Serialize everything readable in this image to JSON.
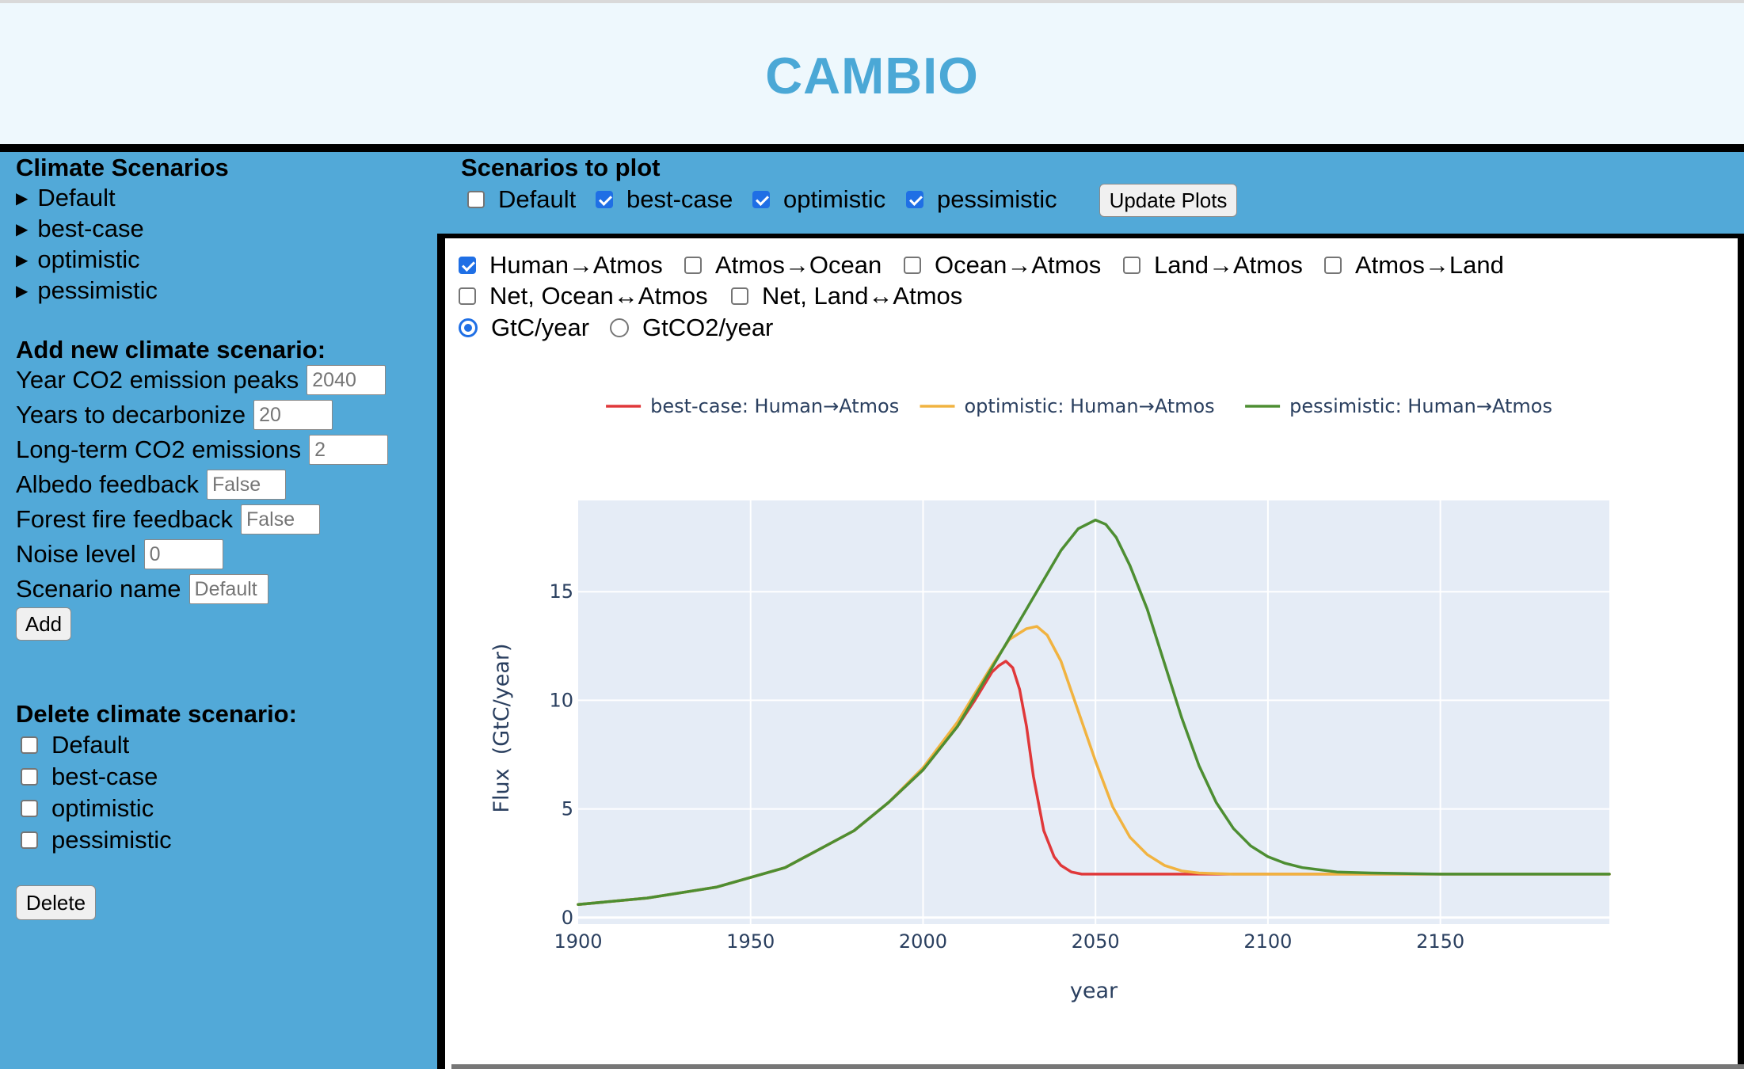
{
  "app": {
    "title": "CAMBIO"
  },
  "sidebar": {
    "scenarios_heading": "Climate Scenarios",
    "scenarios": [
      {
        "label": "Default"
      },
      {
        "label": "best-case"
      },
      {
        "label": "optimistic"
      },
      {
        "label": "pessimistic"
      }
    ],
    "add": {
      "heading": "Add new climate scenario:",
      "fields": [
        {
          "label": "Year CO2 emission peaks",
          "placeholder": "2040"
        },
        {
          "label": "Years to decarbonize",
          "placeholder": "20"
        },
        {
          "label": "Long-term CO2 emissions",
          "placeholder": "2"
        },
        {
          "label": "Albedo feedback",
          "placeholder": "False"
        },
        {
          "label": "Forest fire feedback",
          "placeholder": "False"
        },
        {
          "label": "Noise level",
          "placeholder": "0"
        },
        {
          "label": "Scenario name",
          "placeholder": "Default"
        }
      ],
      "button_label": "Add"
    },
    "delete": {
      "heading": "Delete climate scenario:",
      "items": [
        {
          "label": "Default",
          "checked": false
        },
        {
          "label": "best-case",
          "checked": false
        },
        {
          "label": "optimistic",
          "checked": false
        },
        {
          "label": "pessimistic",
          "checked": false
        }
      ],
      "button_label": "Delete"
    }
  },
  "plot_controls": {
    "heading": "Scenarios to plot",
    "scenarios": [
      {
        "label": "Default",
        "checked": false
      },
      {
        "label": "best-case",
        "checked": true
      },
      {
        "label": "optimistic",
        "checked": true
      },
      {
        "label": "pessimistic",
        "checked": true
      }
    ],
    "update_button": "Update Plots"
  },
  "flux_options": {
    "checkboxes": [
      {
        "label": "Human→Atmos",
        "checked": true
      },
      {
        "label": "Atmos→Ocean",
        "checked": false
      },
      {
        "label": "Ocean→Atmos",
        "checked": false
      },
      {
        "label": "Land→Atmos",
        "checked": false
      },
      {
        "label": "Atmos→Land",
        "checked": false
      },
      {
        "label": "Net, Ocean↔Atmos",
        "checked": false
      },
      {
        "label": "Net, Land↔Atmos",
        "checked": false
      }
    ],
    "units": [
      {
        "label": "GtC/year",
        "selected": true
      },
      {
        "label": "GtCO2/year",
        "selected": false
      }
    ]
  },
  "chart_data": {
    "type": "line",
    "xlabel": "year",
    "ylabel": "Flux  (GtC/year)",
    "xlim": [
      1900,
      2199
    ],
    "ylim": [
      -0.3,
      19.2
    ],
    "xticks": [
      1900,
      1950,
      2000,
      2050,
      2100,
      2150
    ],
    "yticks": [
      0,
      5,
      10,
      15
    ],
    "grid": true,
    "plot_bgcolor": "#e5ecf6",
    "legend_position": "top",
    "series": [
      {
        "name": "best-case: Human→Atmos",
        "color": "#e0383a",
        "x": [
          1900,
          1920,
          1940,
          1960,
          1980,
          1990,
          2000,
          2010,
          2015,
          2020,
          2022,
          2024,
          2026,
          2028,
          2030,
          2032,
          2035,
          2038,
          2040,
          2043,
          2046,
          2050,
          2060,
          2080,
          2100,
          2199
        ],
        "y": [
          0.6,
          0.9,
          1.4,
          2.3,
          4.0,
          5.3,
          6.8,
          8.8,
          10.0,
          11.3,
          11.6,
          11.8,
          11.5,
          10.5,
          8.8,
          6.5,
          4.0,
          2.8,
          2.4,
          2.1,
          2.0,
          2.0,
          2.0,
          2.0,
          2.0,
          2.0
        ]
      },
      {
        "name": "optimistic: Human→Atmos",
        "color": "#f1b340",
        "x": [
          1900,
          1920,
          1940,
          1960,
          1980,
          1990,
          2000,
          2010,
          2020,
          2025,
          2030,
          2033,
          2036,
          2040,
          2045,
          2050,
          2055,
          2060,
          2065,
          2070,
          2075,
          2080,
          2090,
          2100,
          2199
        ],
        "y": [
          0.6,
          0.9,
          1.4,
          2.3,
          4.0,
          5.3,
          6.9,
          9.0,
          11.6,
          12.8,
          13.3,
          13.4,
          13.0,
          11.8,
          9.5,
          7.2,
          5.1,
          3.7,
          2.9,
          2.4,
          2.15,
          2.05,
          2.0,
          2.0,
          2.0
        ]
      },
      {
        "name": "pessimistic: Human→Atmos",
        "color": "#4d8e32",
        "x": [
          1900,
          1920,
          1940,
          1960,
          1980,
          1990,
          2000,
          2010,
          2020,
          2030,
          2040,
          2045,
          2050,
          2053,
          2056,
          2060,
          2065,
          2070,
          2075,
          2080,
          2085,
          2090,
          2095,
          2100,
          2105,
          2110,
          2120,
          2130,
          2150,
          2199
        ],
        "y": [
          0.6,
          0.9,
          1.4,
          2.3,
          4.0,
          5.3,
          6.8,
          8.8,
          11.5,
          14.2,
          16.9,
          17.9,
          18.3,
          18.1,
          17.5,
          16.2,
          14.2,
          11.7,
          9.2,
          7.0,
          5.3,
          4.1,
          3.3,
          2.8,
          2.5,
          2.3,
          2.1,
          2.05,
          2.0,
          2.0
        ]
      }
    ]
  }
}
